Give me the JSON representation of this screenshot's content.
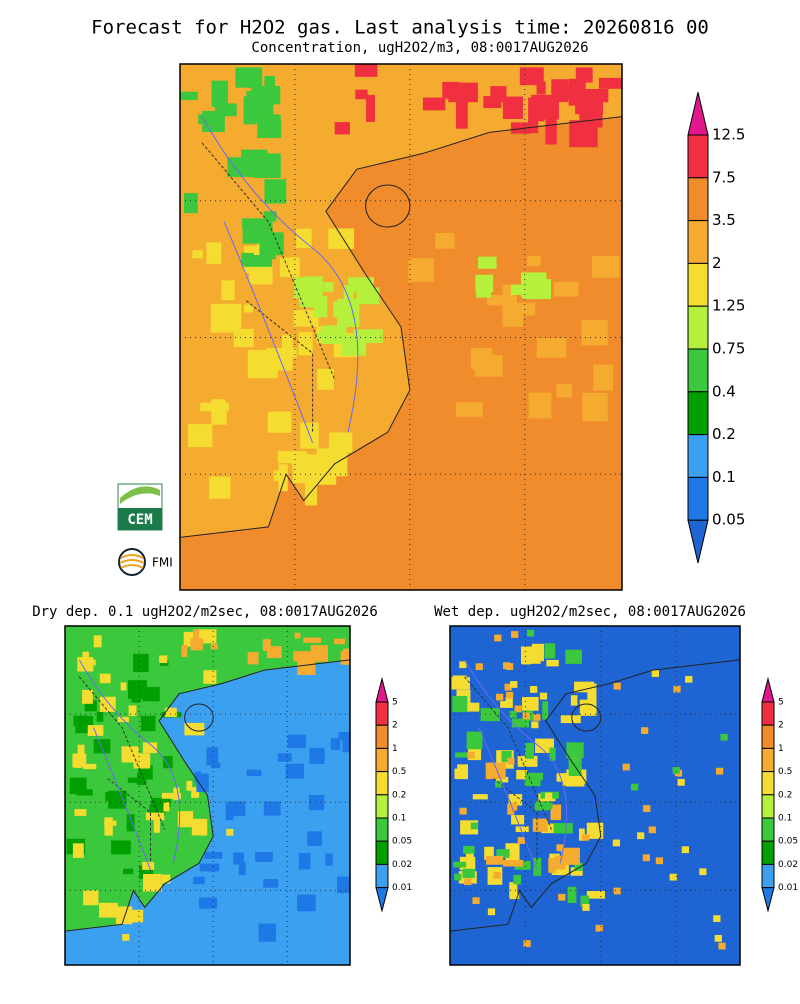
{
  "header": {
    "title": "Forecast for H2O2 gas. Last analysis time: 20260816 00"
  },
  "logos": [
    "CEM",
    "FMI"
  ],
  "panels": [
    {
      "title": "Concentration, ugH2O2/m3, 08:0017AUG2026",
      "colorbar": [
        "12.5",
        "7.5",
        "3.5",
        "2",
        "1.25",
        "0.75",
        "0.4",
        "0.2",
        "0.1",
        "0.05"
      ]
    },
    {
      "title": "Dry dep. 0.1 ugH2O2/m2sec, 08:0017AUG2026",
      "colorbar": [
        "5",
        "2",
        "1",
        "0.5",
        "0.2",
        "0.1",
        "0.05",
        "0.02",
        "0.01"
      ]
    },
    {
      "title": "Wet dep. ugH2O2/m2sec, 08:0017AUG2026",
      "colorbar": [
        "5",
        "2",
        "1",
        "0.5",
        "0.2",
        "0.1",
        "0.05",
        "0.02",
        "0.01"
      ]
    }
  ]
}
